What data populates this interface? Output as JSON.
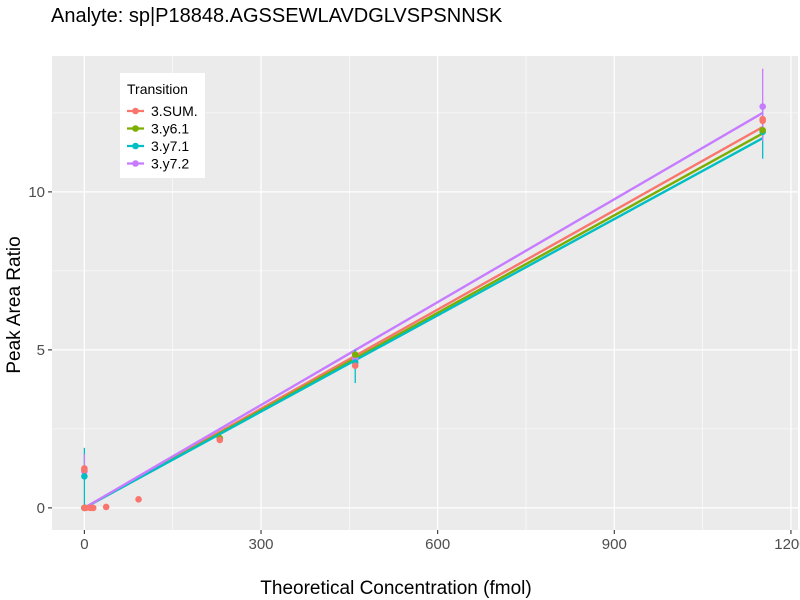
{
  "chart_data": {
    "type": "scatter",
    "title": "Analyte: sp|P18848.AGSSEWLAVDGLVSPSNNSK",
    "xlabel": "Theoretical Concentration (fmol)",
    "ylabel": "Peak Area Ratio",
    "xlim": [
      -55,
      1212
    ],
    "ylim": [
      -0.7,
      14.3
    ],
    "x_ticks": [
      0,
      300,
      600,
      900,
      1200
    ],
    "x_tick_labels": [
      "0",
      "300",
      "600",
      "900",
      "1200"
    ],
    "y_ticks": [
      0,
      5,
      10
    ],
    "y_tick_labels": [
      "0",
      "5",
      "10"
    ],
    "grid": true,
    "legend": {
      "title": "Transition",
      "position": "top-left"
    },
    "series": [
      {
        "name": "3.SUM.",
        "color": "#F8766D",
        "points": [
          [
            0,
            1.25
          ],
          [
            0,
            1.2
          ],
          [
            0,
            0
          ],
          [
            2.5,
            0
          ],
          [
            10,
            0
          ],
          [
            15,
            0
          ],
          [
            37,
            0.03
          ],
          [
            92,
            0.27
          ],
          [
            230,
            2.15
          ],
          [
            460,
            4.5
          ],
          [
            1152,
            12.3
          ],
          [
            1152,
            12.25
          ]
        ],
        "error_bars": [],
        "fit": [
          [
            0,
            0
          ],
          [
            1152,
            12.05
          ]
        ]
      },
      {
        "name": "3.y6.1",
        "color": "#7CAE00",
        "points": [
          [
            0,
            0
          ],
          [
            230,
            2.2
          ],
          [
            460,
            4.85
          ],
          [
            1152,
            11.95
          ]
        ],
        "error_bars": [],
        "fit": [
          [
            0,
            0
          ],
          [
            1152,
            11.85
          ]
        ]
      },
      {
        "name": "3.y7.1",
        "color": "#00BFC4",
        "points": [
          [
            0,
            1.0
          ],
          [
            0,
            0
          ],
          [
            230,
            2.2
          ],
          [
            460,
            4.6
          ],
          [
            1152,
            11.9
          ]
        ],
        "error_bars": [
          [
            0,
            0.1,
            1.9
          ],
          [
            460,
            3.95,
            5.0
          ],
          [
            1152,
            11.05,
            12.75
          ]
        ],
        "fit": [
          [
            0,
            0
          ],
          [
            1152,
            11.7
          ]
        ]
      },
      {
        "name": "3.y7.2",
        "color": "#C77CFF",
        "points": [
          [
            0,
            1.15
          ],
          [
            0,
            0
          ],
          [
            230,
            2.2
          ],
          [
            460,
            4.7
          ],
          [
            1152,
            12.7
          ]
        ],
        "error_bars": [
          [
            0,
            0.9,
            1.7
          ],
          [
            1152,
            11.6,
            13.9
          ]
        ],
        "fit": [
          [
            0,
            0
          ],
          [
            1152,
            12.5
          ]
        ]
      }
    ]
  }
}
